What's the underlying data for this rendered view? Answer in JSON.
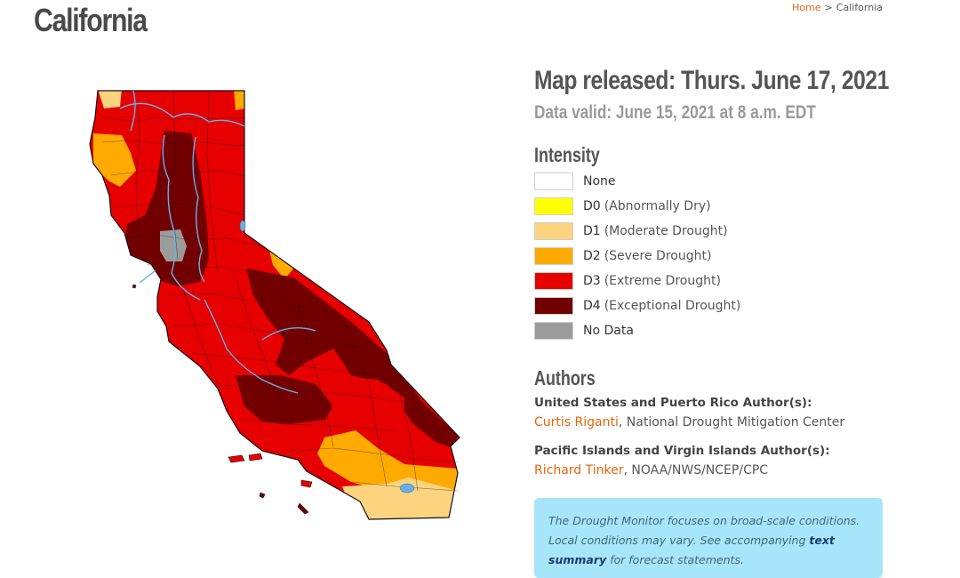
{
  "page": {
    "title": "California"
  },
  "breadcrumb": {
    "home": "Home",
    "separator": ">",
    "current": "California"
  },
  "map_info": {
    "released": "Map released: Thurs. June 17, 2021",
    "valid": "Data valid: June 15, 2021 at 8 a.m. EDT"
  },
  "legend": {
    "heading": "Intensity",
    "items": [
      {
        "code": "None",
        "desc": "",
        "color": "#ffffff"
      },
      {
        "code": "D0",
        "desc": "(Abnormally Dry)",
        "color": "#ffff00"
      },
      {
        "code": "D1",
        "desc": "(Moderate Drought)",
        "color": "#fcd37f"
      },
      {
        "code": "D2",
        "desc": "(Severe Drought)",
        "color": "#ffaa00"
      },
      {
        "code": "D3",
        "desc": "(Extreme Drought)",
        "color": "#e60000"
      },
      {
        "code": "D4",
        "desc": "(Exceptional Drought)",
        "color": "#730000"
      },
      {
        "code": "No Data",
        "desc": "",
        "color": "#9b9b9b"
      }
    ]
  },
  "authors": {
    "heading": "Authors",
    "groups": [
      {
        "role": "United States and Puerto Rico Author(s):",
        "name": "Curtis Riganti",
        "org": ", National Drought Mitigation Center"
      },
      {
        "role": "Pacific Islands and Virgin Islands Author(s):",
        "name": "Richard Tinker",
        "org": ", NOAA/NWS/NCEP/CPC"
      }
    ]
  },
  "note": {
    "text_before": "The Drought Monitor focuses on broad-scale conditions. Local conditions may vary. See accompanying ",
    "link": "text summary",
    "text_after": " for forecast statements."
  },
  "map_colors": {
    "d1": "#fcd37f",
    "d2": "#ffaa00",
    "d3": "#e60000",
    "d4": "#730000",
    "nodata": "#9b9b9b",
    "water": "#6aaee8",
    "county_line": "#1a1a1a"
  }
}
